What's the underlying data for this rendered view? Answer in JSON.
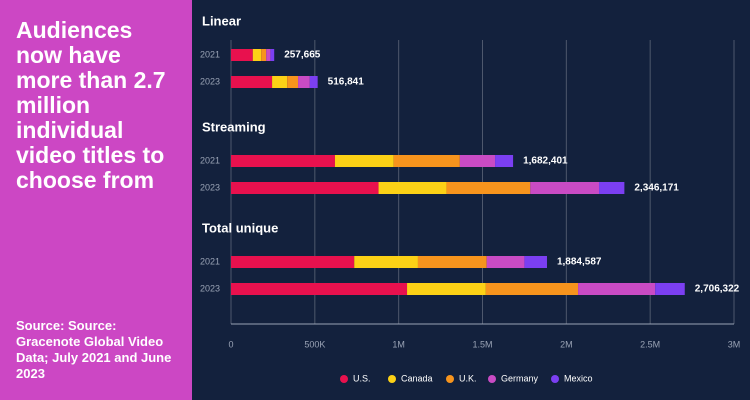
{
  "headline": "Audiences now have more than 2.7 million individual video titles to choose from",
  "source": "Source: Source: Gracenote Global Video Data; July 2021 and June 2023",
  "chart_data": {
    "type": "stacked-bar-horizontal",
    "groups": [
      "Linear",
      "Streaming",
      "Total unique"
    ],
    "categories": [
      [
        "2021",
        "2023"
      ],
      [
        "2021",
        "2023"
      ],
      [
        "2021",
        "2023"
      ]
    ],
    "series": [
      {
        "name": "U.S.",
        "color": "#e8114e",
        "values": [
          [
            130000,
            245000
          ],
          [
            620000,
            880000
          ],
          [
            735000,
            1050000
          ]
        ]
      },
      {
        "name": "Canada",
        "color": "#fcd116",
        "values": [
          [
            50000,
            90000
          ],
          [
            350000,
            405000
          ],
          [
            380000,
            470000
          ]
        ]
      },
      {
        "name": "U.K.",
        "color": "#f7941d",
        "values": [
          [
            30000,
            65000
          ],
          [
            395000,
            500000
          ],
          [
            410000,
            550000
          ]
        ]
      },
      {
        "name": "Germany",
        "color": "#c94bc4",
        "values": [
          [
            25000,
            70000
          ],
          [
            210000,
            410000
          ],
          [
            225000,
            460000
          ]
        ]
      },
      {
        "name": "Mexico",
        "color": "#7b3ff2",
        "values": [
          [
            22665,
            46841
          ],
          [
            107401,
            151171
          ],
          [
            134587,
            176322
          ]
        ]
      }
    ],
    "totals": [
      [
        257665,
        516841
      ],
      [
        1682401,
        2346171
      ],
      [
        1884587,
        2706322
      ]
    ],
    "value_labels": [
      [
        "257,665",
        "516,841"
      ],
      [
        "1,682,401",
        "2,346,171"
      ],
      [
        "1,884,587",
        "2,706,322"
      ]
    ],
    "xlim": [
      0,
      3000000
    ],
    "xticks": [
      0,
      {
        "value": 500000,
        "label": "500K"
      },
      {
        "value": 1000000,
        "label": "1M"
      },
      {
        "value": 1500000,
        "label": "1.5M"
      },
      {
        "value": 2000000,
        "label": "2M"
      },
      {
        "value": 2500000,
        "label": "2.5M"
      },
      {
        "value": 3000000,
        "label": "3M"
      }
    ],
    "grid": true
  }
}
